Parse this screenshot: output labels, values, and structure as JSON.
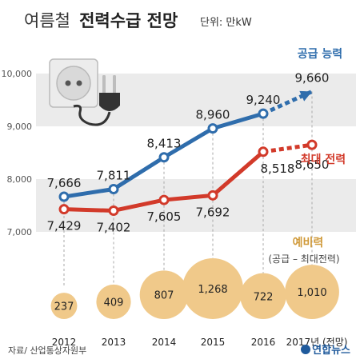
{
  "header": {
    "title_light": "여름철",
    "title_bold": "전력수급 전망",
    "unit": "단위: 만kW"
  },
  "footer": {
    "source": "자료/ 산업통상자원부",
    "agency": "연합뉴스"
  },
  "colors": {
    "supply": "#2f6dac",
    "peak": "#d23a2a",
    "reserve": "#d09a3a",
    "bubble": "#f0c98a",
    "band": "#ebebeb",
    "grid_dash": "#aaaaaa"
  },
  "chart_data": {
    "type": "line",
    "title": "여름철 전력수급 전망",
    "ylabel": "단위: 만kW",
    "ylim": [
      7000,
      10000
    ],
    "yticks": [
      "7,000",
      "8,000",
      "9,000",
      "10,000"
    ],
    "ytick_values": [
      7000,
      8000,
      9000,
      10000
    ],
    "categories": [
      "2012",
      "2013",
      "2014",
      "2015",
      "2016",
      "2017년 (전망)"
    ],
    "series": [
      {
        "name": "공급 능력",
        "key": "supply",
        "values": [
          7666,
          7811,
          8413,
          8960,
          9240,
          9660
        ],
        "labels": [
          "7,666",
          "7,811",
          "8,413",
          "8,960",
          "9,240",
          "9,660"
        ],
        "forecast_index": 5
      },
      {
        "name": "최대 전력",
        "key": "peak",
        "values": [
          7429,
          7402,
          7605,
          7692,
          8518,
          8650
        ],
        "labels": [
          "7,429",
          "7,402",
          "7,605",
          "7,692",
          "8,518",
          "8,650"
        ],
        "forecast_index": 5
      }
    ],
    "reserve": {
      "name": "예비력",
      "note": "(공급 – 최대전력)",
      "values": [
        237,
        409,
        807,
        1268,
        722,
        1010
      ],
      "labels": [
        "237",
        "409",
        "807",
        "1,268",
        "722",
        "1,010"
      ]
    },
    "grid": true
  }
}
